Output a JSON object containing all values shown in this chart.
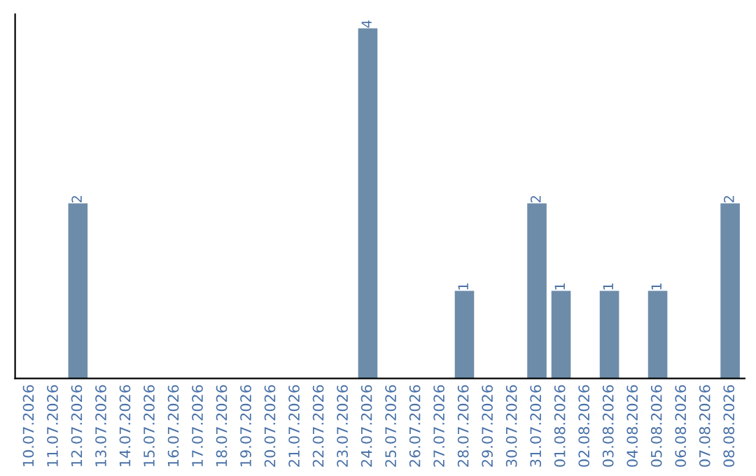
{
  "chart_data": {
    "type": "bar",
    "categories": [
      "10.07.2026",
      "11.07.2026",
      "12.07.2026",
      "13.07.2026",
      "14.07.2026",
      "15.07.2026",
      "16.07.2026",
      "17.07.2026",
      "18.07.2026",
      "19.07.2026",
      "20.07.2026",
      "21.07.2026",
      "22.07.2026",
      "23.07.2026",
      "24.07.2026",
      "25.07.2026",
      "26.07.2026",
      "27.07.2026",
      "28.07.2026",
      "29.07.2026",
      "30.07.2026",
      "31.07.2026",
      "01.08.2026",
      "02.08.2026",
      "03.08.2026",
      "04.08.2026",
      "05.08.2026",
      "06.08.2026",
      "07.08.2026",
      "08.08.2026"
    ],
    "values": [
      0,
      0,
      2,
      0,
      0,
      0,
      0,
      0,
      0,
      0,
      0,
      0,
      0,
      0,
      4,
      0,
      0,
      0,
      1,
      0,
      0,
      2,
      1,
      0,
      1,
      0,
      1,
      0,
      0,
      2
    ],
    "value_labels": [
      null,
      null,
      "2",
      null,
      null,
      null,
      null,
      null,
      null,
      null,
      null,
      null,
      null,
      null,
      "4",
      null,
      null,
      null,
      "1",
      null,
      null,
      "2",
      "1",
      null,
      "1",
      null,
      "1",
      null,
      null,
      "2"
    ],
    "color": "#6d8caa",
    "tick_labels": "x",
    "grid": false,
    "legend": false
  }
}
